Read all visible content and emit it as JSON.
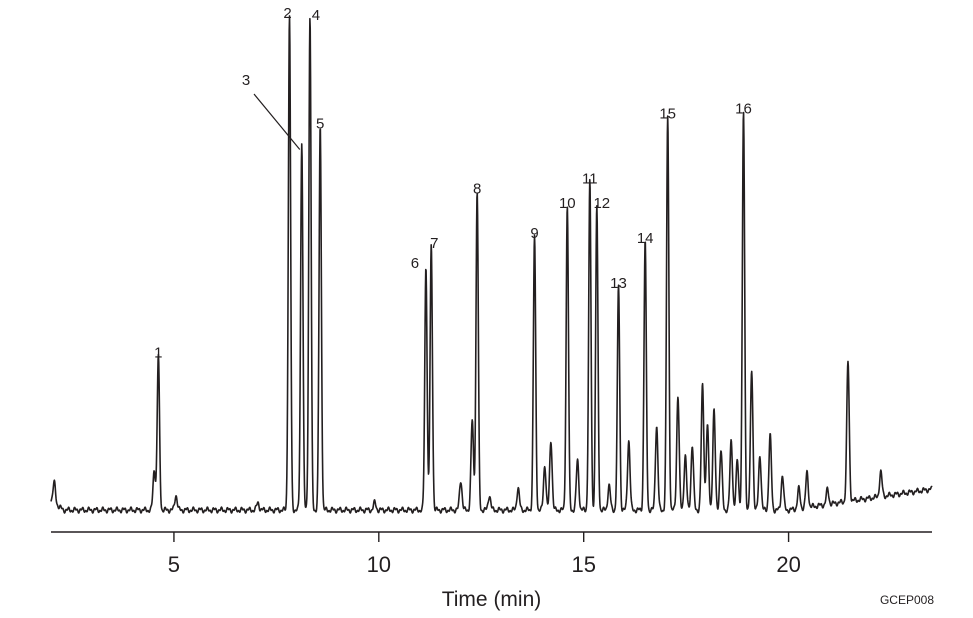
{
  "chart_data": {
    "type": "line",
    "title": "",
    "xlabel": "Time (min)",
    "ylabel": "",
    "xlim": [
      2.0,
      23.5
    ],
    "ylim": [
      0,
      100
    ],
    "x_ticks": [
      5,
      10,
      15,
      20
    ],
    "grid": false,
    "figure_code": "GCEP008",
    "line_color": "#231f20",
    "baseline": 2,
    "peaks": [
      {
        "label": "1",
        "time": 4.62,
        "height": 31
      },
      {
        "label": "2",
        "time": 7.82,
        "height": 99
      },
      {
        "label": "3",
        "time": 8.12,
        "height": 74
      },
      {
        "label": "4",
        "time": 8.32,
        "height": 99
      },
      {
        "label": "5",
        "time": 8.57,
        "height": 77
      },
      {
        "label": "6",
        "time": 11.15,
        "height": 49
      },
      {
        "label": "7",
        "time": 11.28,
        "height": 53
      },
      {
        "label": "8",
        "time": 12.4,
        "height": 64
      },
      {
        "label": "9",
        "time": 13.8,
        "height": 55
      },
      {
        "label": "10",
        "time": 14.6,
        "height": 61
      },
      {
        "label": "11",
        "time": 15.15,
        "height": 66
      },
      {
        "label": "12",
        "time": 15.32,
        "height": 61
      },
      {
        "label": "13",
        "time": 15.85,
        "height": 45
      },
      {
        "label": "14",
        "time": 16.5,
        "height": 54
      },
      {
        "label": "15",
        "time": 17.05,
        "height": 79
      },
      {
        "label": "16",
        "time": 18.9,
        "height": 80
      }
    ],
    "minor_peaks": [
      {
        "time": 2.08,
        "height": 4
      },
      {
        "time": 4.52,
        "height": 8
      },
      {
        "time": 5.05,
        "height": 3
      },
      {
        "time": 7.05,
        "height": 1.5
      },
      {
        "time": 9.9,
        "height": 1.5
      },
      {
        "time": 12.0,
        "height": 6
      },
      {
        "time": 12.28,
        "height": 18
      },
      {
        "time": 12.7,
        "height": 3
      },
      {
        "time": 13.4,
        "height": 4.5
      },
      {
        "time": 14.05,
        "height": 9
      },
      {
        "time": 14.2,
        "height": 14
      },
      {
        "time": 14.85,
        "height": 10
      },
      {
        "time": 15.62,
        "height": 5
      },
      {
        "time": 16.1,
        "height": 14
      },
      {
        "time": 16.78,
        "height": 17
      },
      {
        "time": 17.3,
        "height": 23
      },
      {
        "time": 17.48,
        "height": 11
      },
      {
        "time": 17.65,
        "height": 13
      },
      {
        "time": 17.9,
        "height": 25
      },
      {
        "time": 18.02,
        "height": 17
      },
      {
        "time": 18.18,
        "height": 20
      },
      {
        "time": 18.35,
        "height": 12
      },
      {
        "time": 18.6,
        "height": 14
      },
      {
        "time": 18.75,
        "height": 10
      },
      {
        "time": 19.1,
        "height": 28
      },
      {
        "time": 19.3,
        "height": 11
      },
      {
        "time": 19.55,
        "height": 15
      },
      {
        "time": 19.85,
        "height": 7
      },
      {
        "time": 20.25,
        "height": 4
      },
      {
        "time": 20.45,
        "height": 7
      },
      {
        "time": 20.95,
        "height": 3
      },
      {
        "time": 21.45,
        "height": 28
      },
      {
        "time": 22.25,
        "height": 5
      }
    ]
  }
}
